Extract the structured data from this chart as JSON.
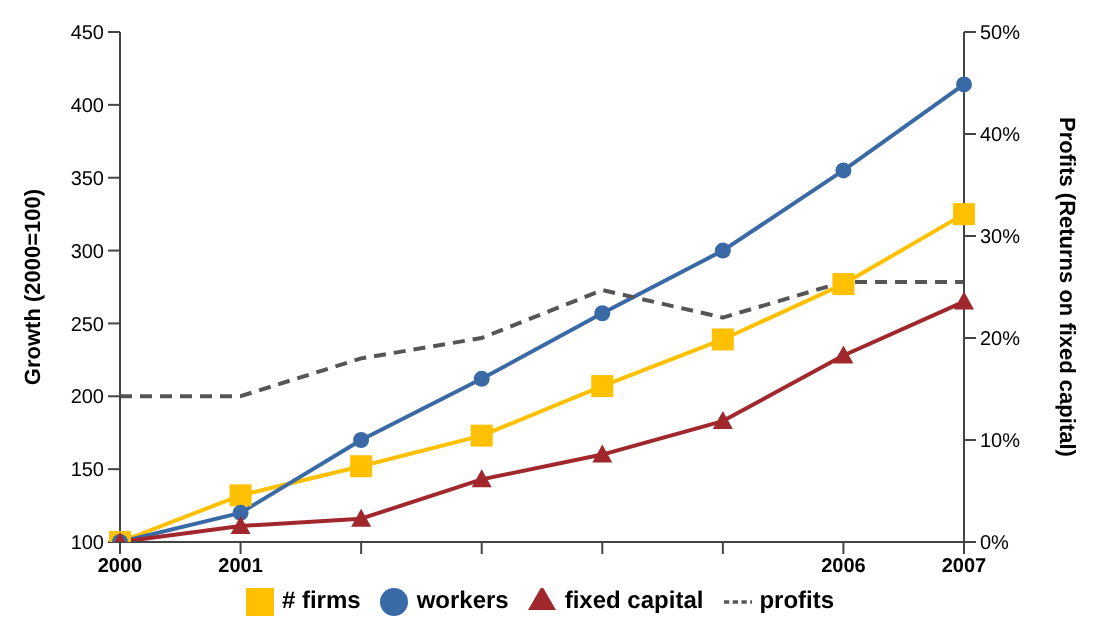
{
  "chart_data": {
    "type": "line",
    "xlabel": null,
    "ylabel": "Growth (2000=100)",
    "y2label": "Profits (Returns on fixed capital)",
    "categories": [
      "2000",
      "2001",
      null,
      null,
      null,
      null,
      "2006",
      "2007"
    ],
    "series": [
      {
        "name": "# firms",
        "color": "#ffc000",
        "marker": "square",
        "line_style": "solid",
        "values": [
          100,
          132,
          152,
          173,
          207,
          239,
          277,
          325
        ]
      },
      {
        "name": "workers",
        "color": "#3a6aa6",
        "marker": "circle",
        "line_style": "solid",
        "values": [
          100,
          120,
          170,
          212,
          257,
          300,
          355,
          414
        ]
      },
      {
        "name": "fixed capital",
        "color": "#a0282d",
        "marker": "triangle",
        "line_style": "solid",
        "values": [
          100,
          111,
          116,
          143,
          160,
          183,
          228,
          265
        ]
      },
      {
        "name": "profits",
        "color": "#555555",
        "marker": "none",
        "line_style": "dashed",
        "axis": "y2",
        "values": [
          14.3,
          14.3,
          18,
          20,
          24.7,
          22,
          25.5,
          25.5
        ]
      }
    ],
    "ylim": [
      100,
      450
    ],
    "yticks": [
      100,
      150,
      200,
      250,
      300,
      350,
      400,
      450
    ],
    "y2lim": [
      0,
      50
    ],
    "y2ticks": [
      {
        "value": 0,
        "label": "0%"
      },
      {
        "value": 10,
        "label": "10%"
      },
      {
        "value": 20,
        "label": "20%"
      },
      {
        "value": 30,
        "label": "30%"
      },
      {
        "value": 40,
        "label": "40%"
      },
      {
        "value": 50,
        "label": "50%"
      }
    ],
    "grid": false,
    "legend": "bottom"
  }
}
